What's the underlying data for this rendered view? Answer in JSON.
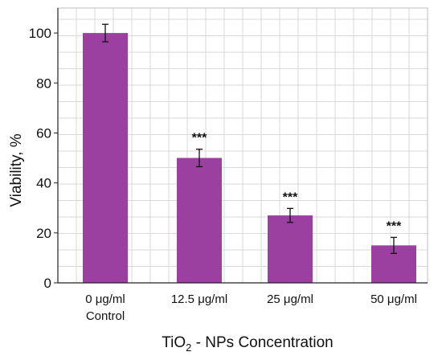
{
  "chart_data": {
    "type": "bar",
    "categories": [
      "0 μg/ml",
      "12.5 μg/ml",
      "25 μg/ml",
      "50 μg/ml"
    ],
    "category_sublabels": [
      "Control",
      "",
      "",
      ""
    ],
    "values": [
      100,
      50,
      27,
      15
    ],
    "errors": [
      3.5,
      3.5,
      2.8,
      3.2
    ],
    "significance": [
      "",
      "***",
      "***",
      "***"
    ],
    "ylabel": "Viability, %",
    "xlabel_parts": [
      "TiO",
      "2",
      " - NPs Concentration"
    ],
    "ylim": [
      0,
      110
    ],
    "yticks": [
      0,
      20,
      40,
      60,
      80,
      100
    ],
    "grid": true,
    "bar_color": "#9b3fa0",
    "grid_color": "#d9d9d9"
  }
}
